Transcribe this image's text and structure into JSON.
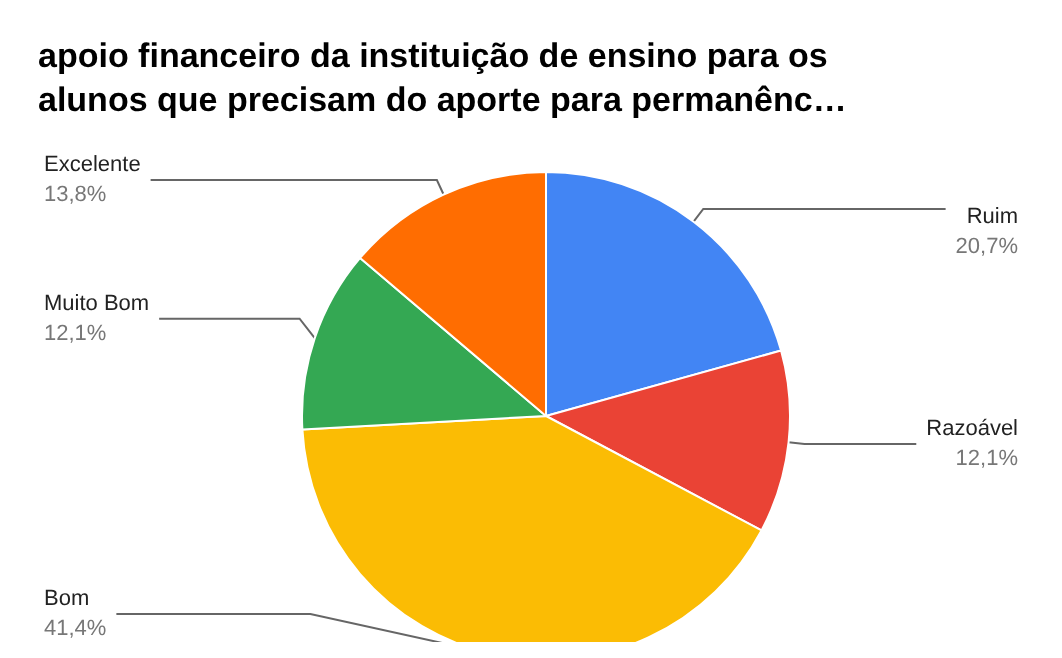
{
  "chart_data": {
    "type": "pie",
    "title": "apoio financeiro da instituição de ensino para os\nalunos que precisam do aporte para permanênc…",
    "categories": [
      "Ruim",
      "Razoável",
      "Bom",
      "Muito Bom",
      "Excelente"
    ],
    "values": [
      20.7,
      12.1,
      41.4,
      12.1,
      13.8
    ],
    "value_labels": [
      "20,7%",
      "12,1%",
      "41,4%",
      "12,1%",
      "13,8%"
    ],
    "colors": [
      "#4285f4",
      "#ea4335",
      "#fbbc04",
      "#34a853",
      "#ff6d01"
    ],
    "legend": false
  }
}
